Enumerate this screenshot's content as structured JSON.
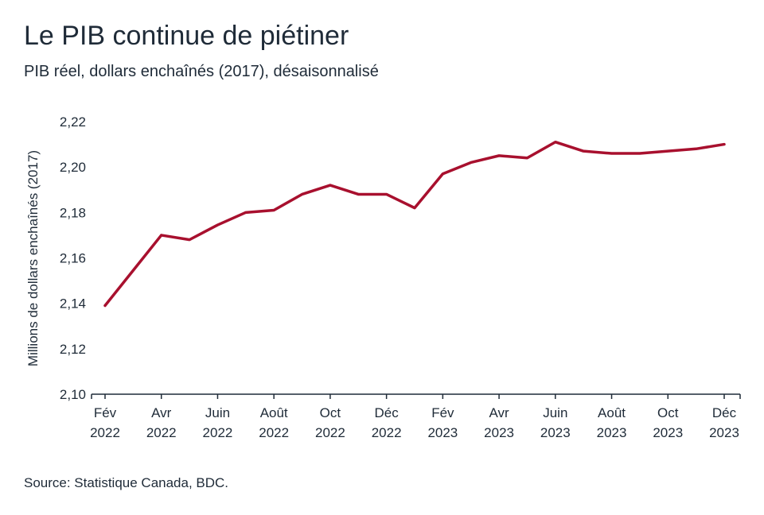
{
  "chart_data": {
    "type": "line",
    "title": "Le PIB continue de piétiner",
    "subtitle": "PIB réel, dollars enchaînés (2017), désaisonnalisé",
    "y_label": "Millions de dollars enchaînés (2017)",
    "source": "Source: Statistique Canada, BDC.",
    "categories": [
      [
        "Fév",
        "2022"
      ],
      null,
      [
        "Avr",
        "2022"
      ],
      null,
      [
        "Juin",
        "2022"
      ],
      null,
      [
        "Août",
        "2022"
      ],
      null,
      [
        "Oct",
        "2022"
      ],
      null,
      [
        "Déc",
        "2022"
      ],
      null,
      [
        "Fév",
        "2023"
      ],
      null,
      [
        "Avr",
        "2023"
      ],
      null,
      [
        "Juin",
        "2023"
      ],
      null,
      [
        "Août",
        "2023"
      ],
      null,
      [
        "Oct",
        "2023"
      ],
      null,
      [
        "Déc",
        "2023"
      ]
    ],
    "series": [
      {
        "color": "#a8102e",
        "values": [
          2.139,
          2.1545,
          2.17,
          2.168,
          2.1745,
          2.18,
          2.181,
          2.188,
          2.192,
          2.188,
          2.188,
          2.182,
          2.197,
          2.202,
          2.205,
          2.204,
          2.211,
          2.207,
          2.206,
          2.206,
          2.207,
          2.208,
          2.21
        ]
      }
    ],
    "ylim": [
      2.1,
      2.22
    ],
    "yticks": [
      {
        "value": 2.1,
        "label": "2,10"
      },
      {
        "value": 2.12,
        "label": "2,12"
      },
      {
        "value": 2.14,
        "label": "2,14"
      },
      {
        "value": 2.16,
        "label": "2,16"
      },
      {
        "value": 2.18,
        "label": "2,18"
      },
      {
        "value": 2.2,
        "label": "2,20"
      },
      {
        "value": 2.22,
        "label": "2,22"
      }
    ]
  }
}
